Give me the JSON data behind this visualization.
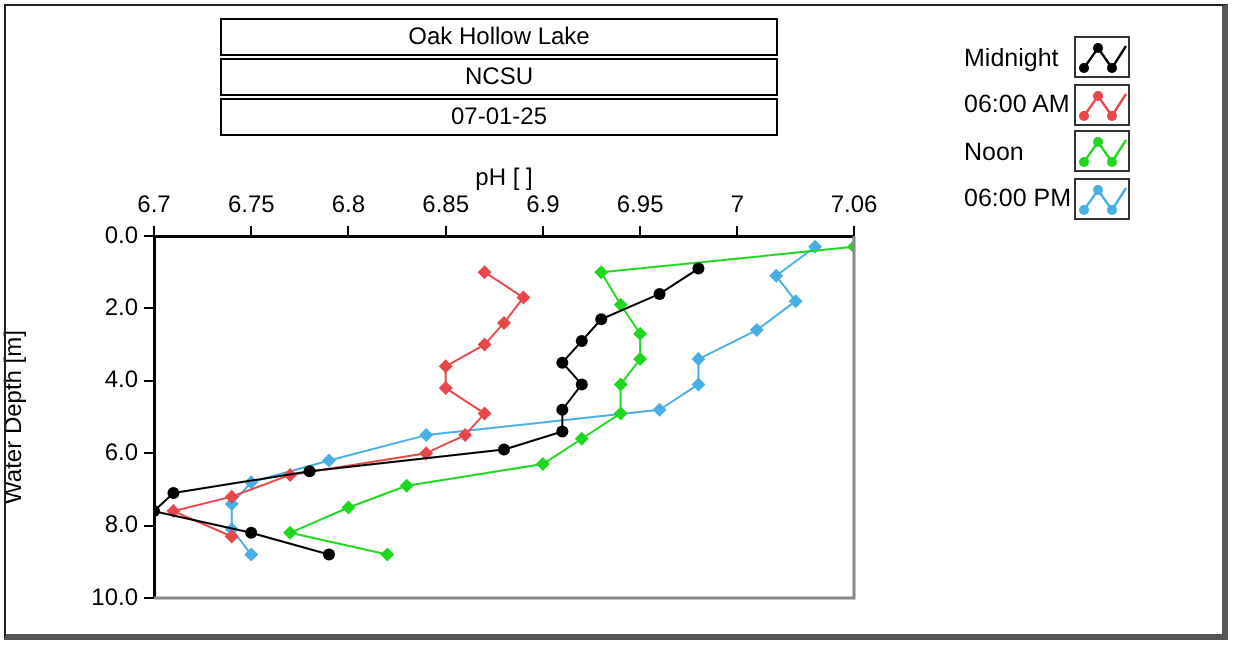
{
  "chart_data": {
    "type": "line",
    "title": "Oak Hollow Lake",
    "subtitle": "NCSU",
    "annotations": [
      "07-01-25"
    ],
    "xlabel": "pH [ ]",
    "ylabel": "Water Depth [m]",
    "xlim": [
      6.7,
      7.06
    ],
    "xticks": [
      6.7,
      6.75,
      6.8,
      6.85,
      6.9,
      6.95,
      7,
      7.06
    ],
    "ylim": [
      10,
      0
    ],
    "yticks": [
      {
        "value": 0,
        "label": "0.0"
      },
      {
        "value": 2,
        "label": "2.0"
      },
      {
        "value": 4,
        "label": "4.0"
      },
      {
        "value": 6,
        "label": "6.0"
      },
      {
        "value": 8,
        "label": "8.0"
      },
      {
        "value": 10,
        "label": "10.0"
      }
    ],
    "grid": false,
    "legend": "top right",
    "line_style": "solid",
    "series": [
      {
        "name": "Midnight",
        "color": "#000000",
        "marker": "circle",
        "x": [
          6.98,
          6.96,
          6.93,
          6.92,
          6.91,
          6.92,
          6.91,
          6.91,
          6.88,
          6.78,
          6.71,
          6.7,
          6.75,
          6.79
        ],
        "values": [
          0.9,
          1.6,
          2.3,
          2.9,
          3.5,
          4.1,
          4.8,
          5.4,
          5.9,
          6.5,
          7.1,
          7.6,
          8.2,
          8.8
        ]
      },
      {
        "name": "06:00 AM",
        "color": "#e8474a",
        "marker": "diamond",
        "x": [
          6.87,
          6.89,
          6.88,
          6.87,
          6.85,
          6.85,
          6.87,
          6.86,
          6.84,
          6.77,
          6.74,
          6.71,
          6.74
        ],
        "values": [
          1.0,
          1.7,
          2.4,
          3.0,
          3.6,
          4.2,
          4.9,
          5.5,
          6.0,
          6.6,
          7.2,
          7.6,
          8.3
        ]
      },
      {
        "name": "Noon",
        "color": "#1ed81e",
        "marker": "diamond",
        "x": [
          7.06,
          6.93,
          6.94,
          6.95,
          6.95,
          6.94,
          6.94,
          6.92,
          6.9,
          6.83,
          6.8,
          6.77,
          6.82
        ],
        "values": [
          0.3,
          1.0,
          1.9,
          2.7,
          3.4,
          4.1,
          4.9,
          5.6,
          6.3,
          6.9,
          7.5,
          8.2,
          8.8
        ]
      },
      {
        "name": "06:00 PM",
        "color": "#4aaee6",
        "marker": "diamond",
        "x": [
          7.04,
          7.02,
          7.03,
          7.01,
          6.98,
          6.98,
          6.96,
          6.84,
          6.79,
          6.75,
          6.74,
          6.74,
          6.75
        ],
        "values": [
          0.3,
          1.1,
          1.8,
          2.6,
          3.4,
          4.1,
          4.8,
          5.5,
          6.2,
          6.8,
          7.4,
          8.1,
          8.8
        ]
      }
    ]
  }
}
